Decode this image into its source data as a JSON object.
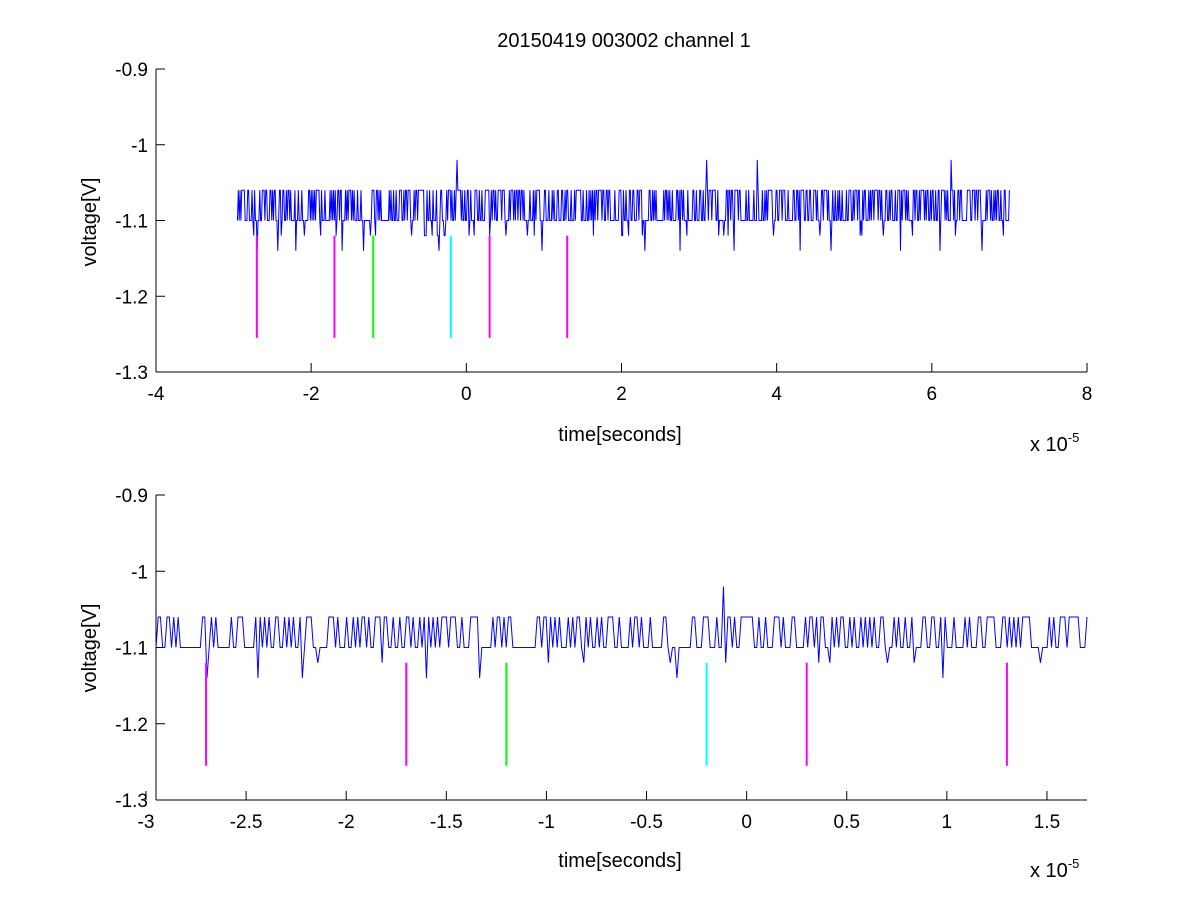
{
  "figure": {
    "title": "20150419 003002 channel 1"
  },
  "chart_data": [
    {
      "type": "line",
      "title": "20150419 003002 channel 1",
      "xlabel": "time[seconds]",
      "ylabel": "voltage[V]",
      "x_multiplier_label": "x 10",
      "x_multiplier_exponent": "-5",
      "xlim": [
        -4,
        8
      ],
      "ylim": [
        -1.3,
        -0.9
      ],
      "x_ticks": [
        -4,
        -2,
        0,
        2,
        4,
        6,
        8
      ],
      "x_tick_labels": [
        "-4",
        "-2",
        "0",
        "2",
        "4",
        "6",
        "8"
      ],
      "y_ticks": [
        -1.3,
        -1.2,
        -1.1,
        -1.0,
        -0.9
      ],
      "y_tick_labels": [
        "-1.3",
        "-1.2",
        "-1.1",
        "-1",
        "-0.9"
      ],
      "grid": false,
      "series": [
        {
          "color": "#0000ff",
          "kind": "trace",
          "x_range": [
            -2.95,
            7.0
          ],
          "baseline": -1.1,
          "high_level": -1.06,
          "low_level": -1.12,
          "dips": [
            {
              "x": -2.7,
              "y": -1.14
            },
            {
              "x": -2.43,
              "y": -1.14
            },
            {
              "x": -2.2,
              "y": -1.14
            },
            {
              "x": -1.6,
              "y": -1.14
            },
            {
              "x": -1.33,
              "y": -1.14
            },
            {
              "x": -0.35,
              "y": -1.14
            },
            {
              "x": 0.98,
              "y": -1.14
            },
            {
              "x": 2.3,
              "y": -1.14
            },
            {
              "x": 2.75,
              "y": -1.14
            },
            {
              "x": 3.45,
              "y": -1.14
            },
            {
              "x": 4.3,
              "y": -1.14
            },
            {
              "x": 4.7,
              "y": -1.14
            },
            {
              "x": 5.6,
              "y": -1.14
            },
            {
              "x": 6.1,
              "y": -1.14
            },
            {
              "x": 6.65,
              "y": -1.14
            }
          ],
          "spikes": [
            {
              "x": -0.12,
              "y": -1.02
            },
            {
              "x": 3.1,
              "y": -1.02
            },
            {
              "x": 3.75,
              "y": -1.02
            },
            {
              "x": 6.25,
              "y": -1.02
            }
          ]
        },
        {
          "color": "#ff00ff",
          "kind": "markers",
          "x": [
            -2.7,
            -1.7,
            0.3,
            1.3
          ],
          "y_range": [
            -1.255,
            -1.12
          ]
        },
        {
          "color": "#00ff00",
          "kind": "markers",
          "x": [
            -1.2
          ],
          "y_range": [
            -1.255,
            -1.12
          ]
        },
        {
          "color": "#00ffff",
          "kind": "markers",
          "x": [
            -0.2
          ],
          "y_range": [
            -1.255,
            -1.12
          ]
        }
      ]
    },
    {
      "type": "line",
      "title": "",
      "xlabel": "time[seconds]",
      "ylabel": "voltage[V]",
      "x_multiplier_label": "x 10",
      "x_multiplier_exponent": "-5",
      "xlim": [
        -2.95,
        1.7
      ],
      "ylim": [
        -1.3,
        -0.9
      ],
      "x_ticks": [
        -3,
        -2.5,
        -2,
        -1.5,
        -1,
        -0.5,
        0,
        0.5,
        1,
        1.5
      ],
      "x_tick_labels": [
        "-3",
        "-2.5",
        "-2",
        "-1.5",
        "-1",
        "-0.5",
        "0",
        "0.5",
        "1",
        "1.5"
      ],
      "y_ticks": [
        -1.3,
        -1.2,
        -1.1,
        -1.0,
        -0.9
      ],
      "y_tick_labels": [
        "-1.3",
        "-1.2",
        "-1.1",
        "-1",
        "-0.9"
      ],
      "grid": false,
      "series": [
        {
          "color": "#0000ff",
          "kind": "trace",
          "x_range": [
            -2.95,
            1.7
          ],
          "baseline": -1.1,
          "high_level": -1.06,
          "low_level": -1.12,
          "dips": [
            {
              "x": -2.7,
              "y": -1.14
            },
            {
              "x": -2.44,
              "y": -1.14
            },
            {
              "x": -2.22,
              "y": -1.14
            },
            {
              "x": -1.6,
              "y": -1.14
            },
            {
              "x": -1.33,
              "y": -1.14
            },
            {
              "x": -0.35,
              "y": -1.14
            },
            {
              "x": 0.98,
              "y": -1.14
            }
          ],
          "spikes": [
            {
              "x": -0.12,
              "y": -1.02
            }
          ]
        },
        {
          "color": "#ff00ff",
          "kind": "markers",
          "x": [
            -2.7,
            -1.7,
            0.3,
            1.3
          ],
          "y_range": [
            -1.255,
            -1.12
          ]
        },
        {
          "color": "#00ff00",
          "kind": "markers",
          "x": [
            -1.2
          ],
          "y_range": [
            -1.255,
            -1.12
          ]
        },
        {
          "color": "#00ffff",
          "kind": "markers",
          "x": [
            -0.2
          ],
          "y_range": [
            -1.255,
            -1.12
          ]
        }
      ]
    }
  ]
}
